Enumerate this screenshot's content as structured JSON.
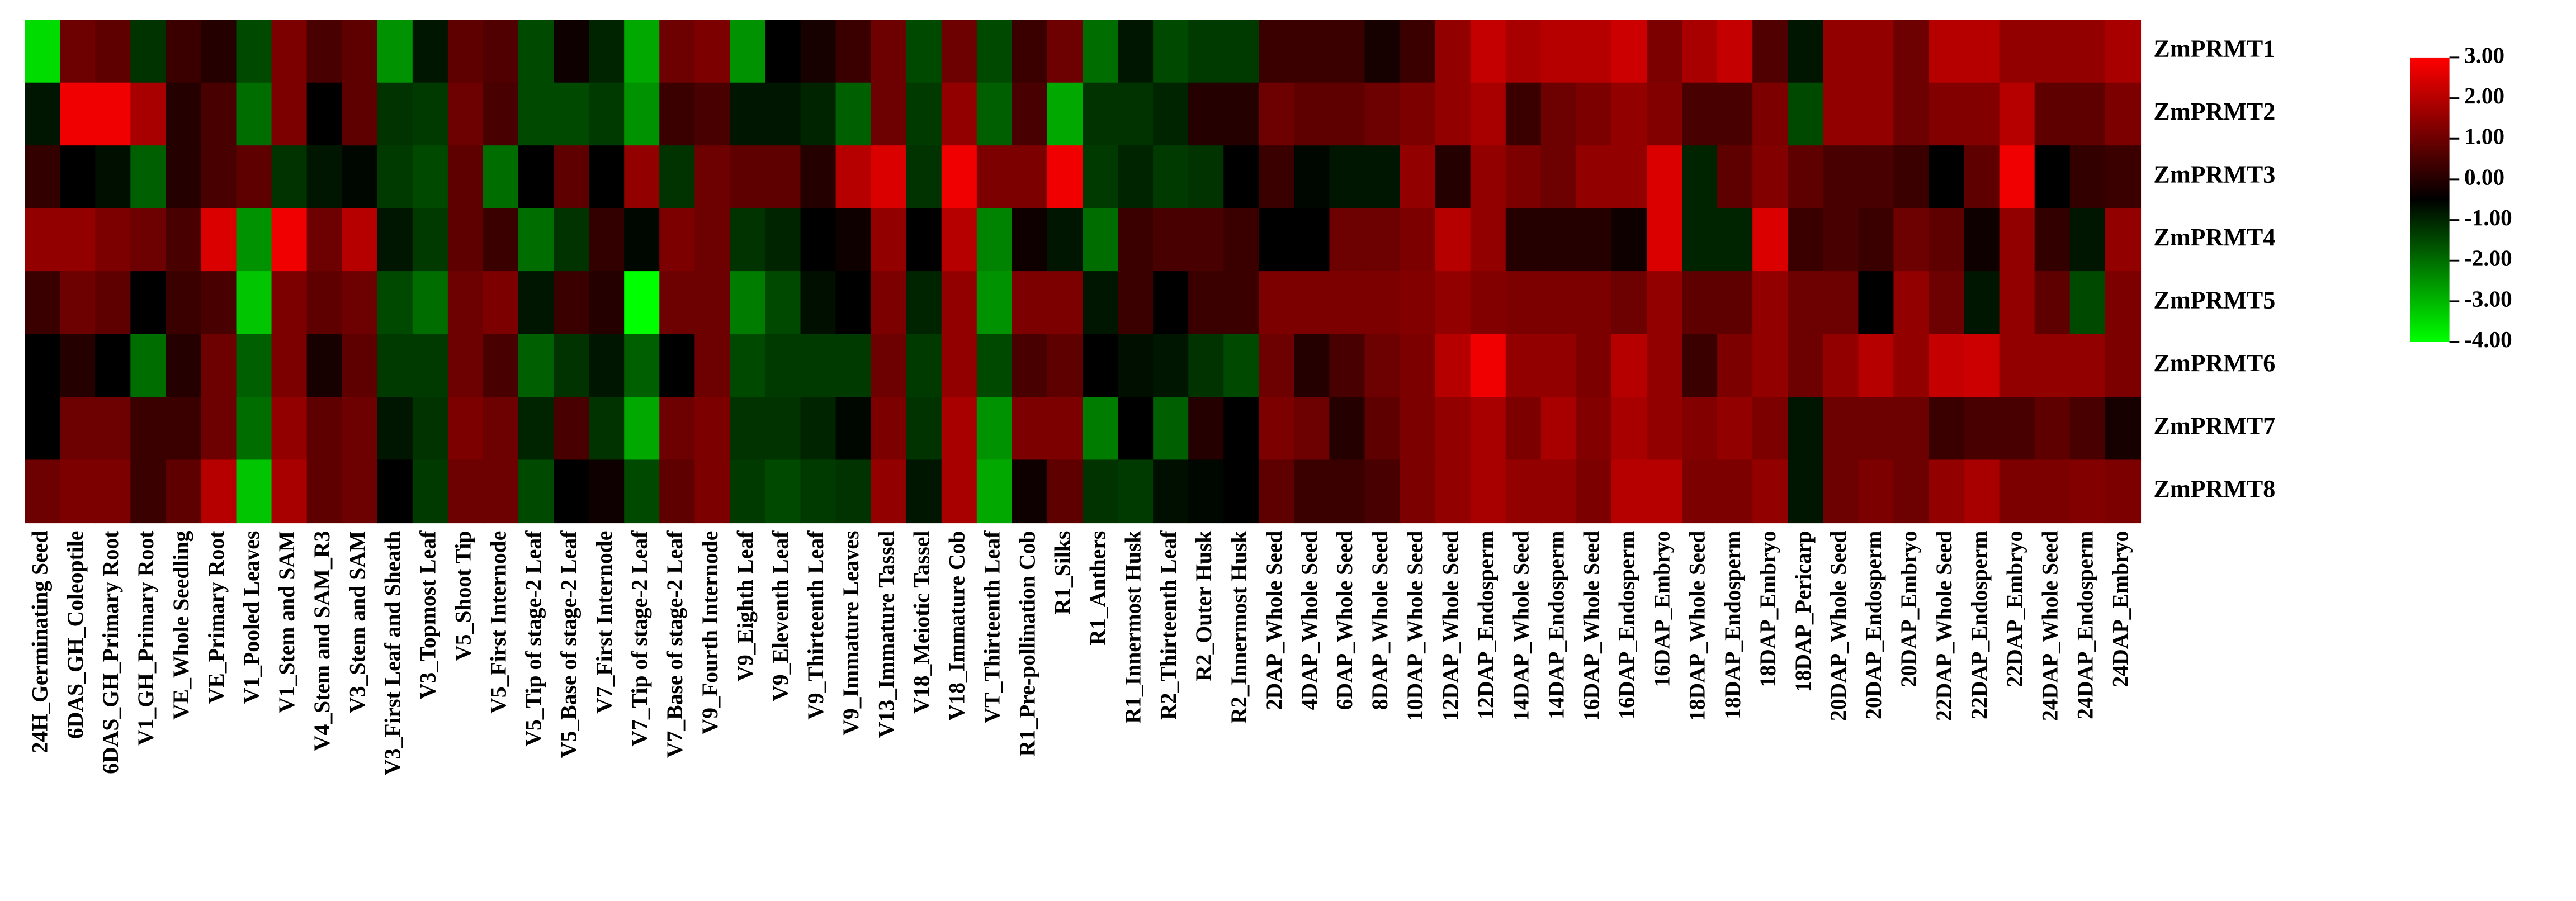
{
  "chart_data": {
    "type": "heatmap",
    "rows": [
      "ZmPRMT1",
      "ZmPRMT2",
      "ZmPRMT3",
      "ZmPRMT4",
      "ZmPRMT5",
      "ZmPRMT6",
      "ZmPRMT7",
      "ZmPRMT8"
    ],
    "categories": [
      "24H_Germinating Seed",
      "6DAS_GH_Coleoptile",
      "6DAS_GH_Primary Root",
      "V1_GH_Primary Root",
      "VE_Whole Seedling",
      "VE_Primary Root",
      "V1_Pooled Leaves",
      "V1_Stem and SAM",
      "V4_Stem and SAM_R3",
      "V3_Stem and SAM",
      "V3_First Leaf and Sheath",
      "V3_Topmost Leaf",
      "V5_Shoot Tip",
      "V5_First Internode",
      "V5_Tip of stage-2 Leaf",
      "V5_Base of stage-2 Leaf",
      "V7_First Internode",
      "V7_Tip of stage-2 Leaf",
      "V7_Base of stage-2 Leaf",
      "V9_Fourth Internode",
      "V9_Eighth Leaf",
      "V9_Eleventh Leaf",
      "V9_Thirteenth Leaf",
      "V9_Immature Leaves",
      "V13_Immature Tassel",
      "V18_Meiotic Tassel",
      "V18_Immature Cob",
      "VT_Thirteenth Leaf",
      "R1_Pre-pollination Cob",
      "R1_Silks",
      "R1_Anthers",
      "R1_Innermost Husk",
      "R2_Thirteenth Leaf",
      "R2_Outer Husk",
      "R2_Innermost Husk",
      "2DAP_Whole Seed",
      "4DAP_Whole Seed",
      "6DAP_Whole Seed",
      "8DAP_Whole Seed",
      "10DAP_Whole Seed",
      "12DAP_Whole Seed",
      "12DAP_Endosperm",
      "14DAP_Whole Seed",
      "14DAP_Endosperm",
      "16DAP_Whole Seed",
      "16DAP_Endosperm",
      "16DAP_Embryo",
      "18DAP_Whole Seed",
      "18DAP_Endosperm",
      "18DAP_Embryo",
      "18DAP_Pericarp",
      "20DAP_Whole Seed",
      "20DAP_Endosperm",
      "20DAP_Embryo",
      "22DAP_Whole Seed",
      "22DAP_Endosperm",
      "22DAP_Embryo",
      "24DAP_Whole Seed",
      "24DAP_Endosperm",
      "24DAP_Embryo"
    ],
    "values": [
      [
        -3.5,
        1,
        0.8,
        -1.2,
        0.3,
        0,
        -1.5,
        1.2,
        0.5,
        0.8,
        -2.5,
        -0.8,
        0.8,
        0.6,
        -1.5,
        -0.3,
        -1,
        -2.8,
        1,
        1.2,
        -2.5,
        -0.5,
        -0.2,
        0.3,
        1,
        -1.5,
        1,
        -1.5,
        0.3,
        1,
        -2,
        -0.8,
        -1.5,
        -1.3,
        -1.3,
        0.3,
        0.3,
        0.3,
        -0.2,
        0.3,
        1.5,
        2.2,
        1.8,
        2,
        2,
        2.3,
        1.2,
        1.8,
        2.2,
        0.6,
        -0.8,
        1.5,
        1.5,
        1,
        2,
        2,
        1.5,
        1.5,
        1.5,
        1.8
      ],
      [
        -0.8,
        2.8,
        2.8,
        1.8,
        0,
        0.5,
        -2,
        1.2,
        -0.5,
        0.8,
        -1.2,
        -1.3,
        1,
        0.5,
        -1.5,
        -1.5,
        -1.3,
        -2.5,
        0.3,
        0.5,
        -0.8,
        -0.8,
        -1,
        -1.8,
        1,
        -1.3,
        1.5,
        -1.8,
        0.5,
        -2.8,
        -1.2,
        -1.2,
        -1,
        0,
        0,
        1,
        0.8,
        0.8,
        1,
        1.2,
        1.5,
        1.8,
        0.3,
        1,
        1.2,
        1.5,
        1.3,
        0.5,
        0.5,
        1.2,
        -1.5,
        1.5,
        1.5,
        1,
        1.3,
        1.3,
        2,
        0.8,
        0.8,
        1.2
      ],
      [
        0.2,
        -0.5,
        -0.7,
        -1.8,
        0,
        0.5,
        0.8,
        -1.2,
        -0.8,
        -0.6,
        -1.3,
        -1.5,
        0.8,
        -2,
        -0.5,
        0.8,
        -0.5,
        1.5,
        -1.2,
        1,
        0.8,
        0.8,
        0,
        2,
        2.5,
        -1.2,
        2.8,
        1.2,
        1.2,
        2.8,
        -1.3,
        -1,
        -1.3,
        -1.2,
        -0.5,
        0.3,
        -0.6,
        -0.8,
        -0.8,
        1.5,
        0,
        1.5,
        1.2,
        1,
        1.5,
        1.5,
        2.5,
        -1,
        0.8,
        1.3,
        0.8,
        0.5,
        0.5,
        0.3,
        -0.5,
        0.8,
        2.8,
        -0.5,
        0.2,
        0.3
      ],
      [
        1.5,
        1.5,
        1.2,
        1,
        0.5,
        2.5,
        -2.5,
        2.8,
        1,
        2,
        -0.8,
        -1.3,
        0.8,
        0.3,
        -2,
        -1.2,
        0.2,
        -0.6,
        1.2,
        1,
        -1.2,
        -1,
        -0.5,
        -0.3,
        1.5,
        -0.5,
        2,
        -2.3,
        -0.3,
        -0.8,
        -2,
        0.3,
        0.5,
        0.5,
        0.3,
        -0.5,
        -0.5,
        1,
        1,
        1.2,
        2,
        1.5,
        0,
        0,
        0,
        -0.3,
        2.5,
        -1,
        -1,
        2.5,
        0.3,
        0.5,
        0.3,
        1,
        0.8,
        -0.3,
        1.5,
        0.2,
        -0.8,
        1.5
      ],
      [
        0.3,
        1,
        0.8,
        -0.5,
        0.3,
        0.5,
        -3.2,
        1.2,
        0.8,
        1,
        -1.5,
        -2,
        1,
        1.2,
        -0.8,
        0.3,
        0,
        -4,
        1,
        1,
        -2.2,
        -1.5,
        -0.7,
        -0.5,
        1.2,
        -1,
        1.5,
        -2.5,
        1.2,
        1.2,
        -0.8,
        0.3,
        -0.5,
        0.3,
        0.3,
        1.2,
        1.2,
        1.2,
        1.2,
        1.3,
        1.5,
        1.3,
        1.2,
        1.2,
        1.2,
        1,
        1.5,
        0.8,
        0.8,
        1.5,
        1,
        1,
        -0.5,
        1.5,
        1,
        -0.8,
        1.5,
        0.8,
        -1.5,
        1.2
      ],
      [
        -0.5,
        0,
        -0.5,
        -2,
        0,
        1,
        -1.8,
        1.2,
        -0.2,
        0.8,
        -1.3,
        -1.3,
        1,
        0.5,
        -1.8,
        -1.2,
        -0.8,
        -1.8,
        -0.5,
        1,
        -1.5,
        -1.3,
        -1.3,
        -1.3,
        1,
        -1.3,
        1.5,
        -1.5,
        0.5,
        0.8,
        -0.5,
        -0.7,
        -0.8,
        -1.2,
        -1.5,
        1,
        0,
        0.5,
        1,
        1.2,
        2,
        2.8,
        1.5,
        1.5,
        1.2,
        2,
        1.5,
        0.3,
        1.2,
        1.5,
        1,
        1.5,
        2,
        1.5,
        2.2,
        2.3,
        1.5,
        1.5,
        1.5,
        1.2
      ],
      [
        -0.5,
        1,
        1,
        0.3,
        0.3,
        1,
        -2,
        1.5,
        0.8,
        1,
        -0.8,
        -1.2,
        1.2,
        1,
        -1,
        0.5,
        -1.2,
        -2.8,
        1,
        1.2,
        -1.2,
        -1.2,
        -1,
        -0.6,
        1.2,
        -1.2,
        1.8,
        -2.5,
        1.2,
        1.2,
        -2.2,
        -0.5,
        -1.8,
        0,
        -0.5,
        1.2,
        1,
        0,
        0.8,
        1.2,
        1.5,
        1.8,
        1.2,
        1.8,
        1.3,
        1.8,
        1.5,
        1.3,
        1.5,
        1.2,
        -0.8,
        1,
        1,
        1,
        0.3,
        0.5,
        0.5,
        0.8,
        0.5,
        -0.2
      ],
      [
        1,
        1.2,
        1.2,
        0.3,
        0.8,
        2,
        -3.2,
        1.8,
        0.8,
        1,
        -0.5,
        -1.3,
        1,
        1,
        -1.5,
        -0.5,
        -0.3,
        -1.5,
        0.8,
        1.2,
        -1.3,
        -1.5,
        -1.3,
        -1.2,
        1.5,
        -0.8,
        1.8,
        -2.8,
        -0.3,
        0.8,
        -1.2,
        -1.3,
        -0.7,
        -0.6,
        -0.5,
        0.8,
        0.3,
        0.3,
        0.5,
        1.2,
        1.5,
        1.8,
        1.5,
        1.5,
        1.2,
        2,
        2,
        1.2,
        1.2,
        1.5,
        -0.8,
        1,
        1.2,
        1,
        1.5,
        1.8,
        1.2,
        1.2,
        1.3,
        1.2
      ]
    ],
    "clim": [
      -4,
      3
    ],
    "colors": {
      "low": "#00ff00",
      "mid": "#000000",
      "high": "#ff0000"
    },
    "colorbar_ticks": [
      {
        "value": 3,
        "label": "3.00"
      },
      {
        "value": 2,
        "label": "2.00"
      },
      {
        "value": 1,
        "label": "1.00"
      },
      {
        "value": 0,
        "label": "0.00"
      },
      {
        "value": -1,
        "label": "-1.00"
      },
      {
        "value": -2,
        "label": "-2.00"
      },
      {
        "value": -3,
        "label": "-3.00"
      },
      {
        "value": -4,
        "label": "-4.00"
      }
    ]
  }
}
